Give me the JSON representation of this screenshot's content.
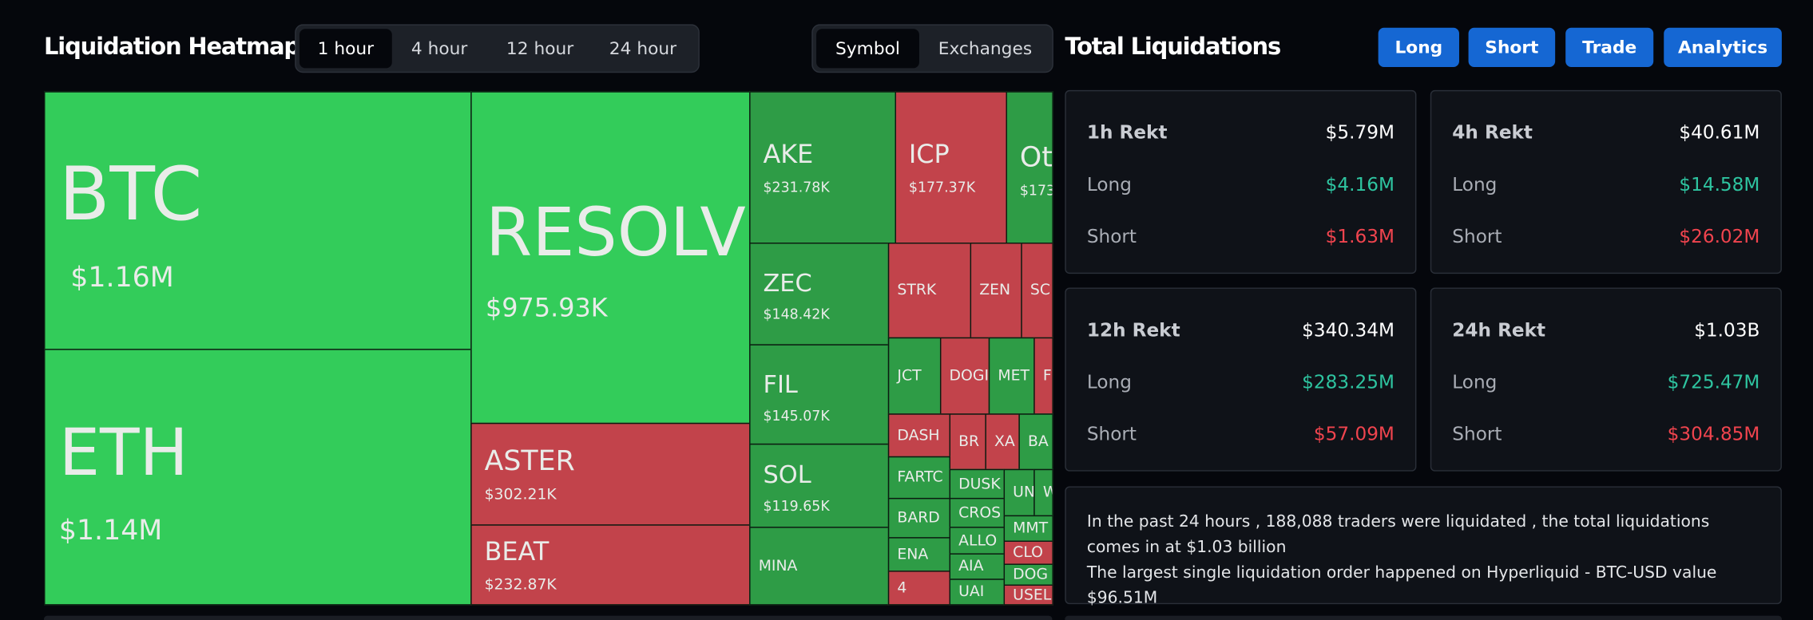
{
  "header": {
    "title": "Liquidation Heatmap",
    "time_tabs": [
      "1 hour",
      "4 hour",
      "12 hour",
      "24 hour"
    ],
    "view_tabs": [
      "Symbol",
      "Exchanges"
    ]
  },
  "heatmap": {
    "tiles": [
      {
        "label": "BTC",
        "value": "$1.16M"
      },
      {
        "label": "ETH",
        "value": "$1.14M"
      },
      {
        "label": "RESOLV",
        "value": "$975.93K"
      },
      {
        "label": "ASTER",
        "value": "$302.21K"
      },
      {
        "label": "BEAT",
        "value": "$232.87K"
      },
      {
        "label": "AKE",
        "value": "$231.78K"
      },
      {
        "label": "ICP",
        "value": "$177.37K"
      },
      {
        "label": "Ot",
        "value": "$173"
      },
      {
        "label": "ZEC",
        "value": "$148.42K"
      },
      {
        "label": "FIL",
        "value": "$145.07K"
      },
      {
        "label": "SOL",
        "value": "$119.65K"
      },
      {
        "label": "MINA"
      },
      {
        "label": "STRK"
      },
      {
        "label": "ZEN"
      },
      {
        "label": "SC"
      },
      {
        "label": "JCT"
      },
      {
        "label": "DOGI"
      },
      {
        "label": "MET"
      },
      {
        "label": "F"
      },
      {
        "label": "DASH"
      },
      {
        "label": "BR"
      },
      {
        "label": "XA"
      },
      {
        "label": "BA"
      },
      {
        "label": "FARTC"
      },
      {
        "label": "BARD"
      },
      {
        "label": "ENA"
      },
      {
        "label": "4"
      },
      {
        "label": "DUSK"
      },
      {
        "label": "CROS"
      },
      {
        "label": "ALLO"
      },
      {
        "label": "AIA"
      },
      {
        "label": "UAI"
      },
      {
        "label": "UN"
      },
      {
        "label": "W"
      },
      {
        "label": "MMT"
      },
      {
        "label": "CLO"
      },
      {
        "label": "DOG"
      },
      {
        "label": "USEL"
      }
    ]
  },
  "summary": {
    "title": "Total Liquidations",
    "buttons": [
      "Long",
      "Short",
      "Trade",
      "Analytics"
    ],
    "cards": [
      {
        "title": "1h Rekt",
        "total": "$5.79M",
        "rows": [
          {
            "label": "Long",
            "value": "$4.16M"
          },
          {
            "label": "Short",
            "value": "$1.63M"
          }
        ]
      },
      {
        "title": "4h Rekt",
        "total": "$40.61M",
        "rows": [
          {
            "label": "Long",
            "value": "$14.58M"
          },
          {
            "label": "Short",
            "value": "$26.02M"
          }
        ]
      },
      {
        "title": "12h Rekt",
        "total": "$340.34M",
        "rows": [
          {
            "label": "Long",
            "value": "$283.25M"
          },
          {
            "label": "Short",
            "value": "$57.09M"
          }
        ]
      },
      {
        "title": "24h Rekt",
        "total": "$1.03B",
        "rows": [
          {
            "label": "Long",
            "value": "$725.47M"
          },
          {
            "label": "Short",
            "value": "$304.85M"
          }
        ]
      }
    ]
  },
  "info": {
    "lines": [
      "In the past 24 hours , 188,088 traders were liquidated , the total liquidations comes in at $1.03 billion",
      "The largest single liquidation order happened on Hyperliquid - BTC-USD value $96.51M"
    ]
  }
}
